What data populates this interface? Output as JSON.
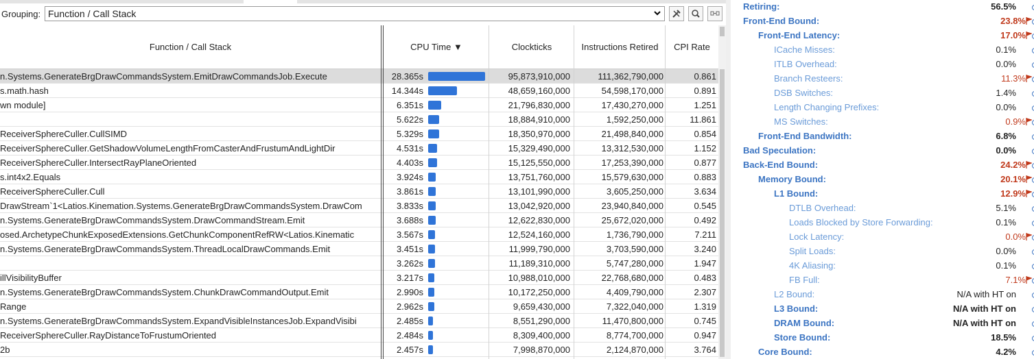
{
  "grouping": {
    "label": "Grouping:",
    "value": "Function / Call Stack"
  },
  "toolbar": {
    "settings_icon": "tools-icon",
    "search_icon": "search-icon",
    "expand_icon": "expand-icon"
  },
  "columns": {
    "function": "Function / Call Stack",
    "cpu_time": "CPU Time ▼",
    "clockticks": "Clockticks",
    "instructions": "Instructions Retired",
    "cpi": "CPI Rate"
  },
  "rows": [
    {
      "func": "n.Systems.GenerateBrgDrawCommandsSystem.EmitDrawCommandsJob.Execute",
      "time": "28.365s",
      "bar": 1.0,
      "clk": "95,873,910,000",
      "ins": "111,362,790,000",
      "cpi": "0.861"
    },
    {
      "func": "s.math.hash",
      "time": "14.344s",
      "bar": 0.506,
      "clk": "48,659,160,000",
      "ins": "54,598,170,000",
      "cpi": "0.891"
    },
    {
      "func": "wn module]",
      "time": "6.351s",
      "bar": 0.224,
      "clk": "21,796,830,000",
      "ins": "17,430,270,000",
      "cpi": "1.251"
    },
    {
      "func": "",
      "time": "5.622s",
      "bar": 0.198,
      "clk": "18,884,910,000",
      "ins": "1,592,250,000",
      "cpi": "11.861"
    },
    {
      "func": "ReceiverSphereCuller.CullSIMD",
      "time": "5.329s",
      "bar": 0.188,
      "clk": "18,350,970,000",
      "ins": "21,498,840,000",
      "cpi": "0.854"
    },
    {
      "func": "ReceiverSphereCuller.GetShadowVolumeLengthFromCasterAndFrustumAndLightDir",
      "time": "4.531s",
      "bar": 0.16,
      "clk": "15,329,490,000",
      "ins": "13,312,530,000",
      "cpi": "1.152"
    },
    {
      "func": "ReceiverSphereCuller.IntersectRayPlaneOriented",
      "time": "4.403s",
      "bar": 0.155,
      "clk": "15,125,550,000",
      "ins": "17,253,390,000",
      "cpi": "0.877"
    },
    {
      "func": "s.int4x2.Equals",
      "time": "3.924s",
      "bar": 0.138,
      "clk": "13,751,760,000",
      "ins": "15,579,630,000",
      "cpi": "0.883"
    },
    {
      "func": "ReceiverSphereCuller.Cull",
      "time": "3.861s",
      "bar": 0.136,
      "clk": "13,101,990,000",
      "ins": "3,605,250,000",
      "cpi": "3.634"
    },
    {
      "func": "DrawStream`1<Latios.Kinemation.Systems.GenerateBrgDrawCommandsSystem.DrawCom",
      "time": "3.833s",
      "bar": 0.135,
      "clk": "13,042,920,000",
      "ins": "23,940,840,000",
      "cpi": "0.545"
    },
    {
      "func": "n.Systems.GenerateBrgDrawCommandsSystem.DrawCommandStream.Emit",
      "time": "3.688s",
      "bar": 0.13,
      "clk": "12,622,830,000",
      "ins": "25,672,020,000",
      "cpi": "0.492"
    },
    {
      "func": "osed.ArchetypeChunkExposedExtensions.GetChunkComponentRefRW<Latios.Kinematic",
      "time": "3.567s",
      "bar": 0.126,
      "clk": "12,524,160,000",
      "ins": "1,736,790,000",
      "cpi": "7.211"
    },
    {
      "func": "n.Systems.GenerateBrgDrawCommandsSystem.ThreadLocalDrawCommands.Emit",
      "time": "3.451s",
      "bar": 0.122,
      "clk": "11,999,790,000",
      "ins": "3,703,590,000",
      "cpi": "3.240"
    },
    {
      "func": "",
      "time": "3.262s",
      "bar": 0.115,
      "clk": "11,189,310,000",
      "ins": "5,747,280,000",
      "cpi": "1.947"
    },
    {
      "func": "illVisibilityBuffer",
      "time": "3.217s",
      "bar": 0.113,
      "clk": "10,988,010,000",
      "ins": "22,768,680,000",
      "cpi": "0.483"
    },
    {
      "func": "n.Systems.GenerateBrgDrawCommandsSystem.ChunkDrawCommandOutput.Emit",
      "time": "2.990s",
      "bar": 0.105,
      "clk": "10,172,250,000",
      "ins": "4,409,790,000",
      "cpi": "2.307"
    },
    {
      "func": "Range",
      "time": "2.962s",
      "bar": 0.104,
      "clk": "9,659,430,000",
      "ins": "7,322,040,000",
      "cpi": "1.319"
    },
    {
      "func": "n.Systems.GenerateBrgDrawCommandsSystem.ExpandVisibleInstancesJob.ExpandVisibi",
      "time": "2.485s",
      "bar": 0.088,
      "clk": "8,551,290,000",
      "ins": "11,470,800,000",
      "cpi": "0.745"
    },
    {
      "func": "ReceiverSphereCuller.RayDistanceToFrustumOriented",
      "time": "2.484s",
      "bar": 0.088,
      "clk": "8,309,400,000",
      "ins": "8,774,700,000",
      "cpi": "0.947"
    },
    {
      "func": "2b",
      "time": "2.457s",
      "bar": 0.087,
      "clk": "7,998,870,000",
      "ins": "2,124,870,000",
      "cpi": "3.764"
    }
  ],
  "metrics": [
    {
      "label": "Retiring:",
      "value": "56.5%",
      "level": 0,
      "bold": true,
      "red": false,
      "flag": false
    },
    {
      "label": "Front-End Bound:",
      "value": "23.8%",
      "level": 0,
      "bold": true,
      "red": true,
      "flag": true
    },
    {
      "label": "Front-End Latency:",
      "value": "17.0%",
      "level": 1,
      "bold": true,
      "red": true,
      "flag": true
    },
    {
      "label": "ICache Misses:",
      "value": "0.1%",
      "level": 2,
      "bold": false,
      "red": false,
      "flag": false
    },
    {
      "label": "ITLB Overhead:",
      "value": "0.0%",
      "level": 2,
      "bold": false,
      "red": false,
      "flag": false
    },
    {
      "label": "Branch Resteers:",
      "value": "11.3%",
      "level": 2,
      "bold": false,
      "red": true,
      "flag": true
    },
    {
      "label": "DSB Switches:",
      "value": "1.4%",
      "level": 2,
      "bold": false,
      "red": false,
      "flag": false
    },
    {
      "label": "Length Changing Prefixes:",
      "value": "0.0%",
      "level": 2,
      "bold": false,
      "red": false,
      "flag": false
    },
    {
      "label": "MS Switches:",
      "value": "0.9%",
      "level": 2,
      "bold": false,
      "red": true,
      "flag": true
    },
    {
      "label": "Front-End Bandwidth:",
      "value": "6.8%",
      "level": 1,
      "bold": true,
      "red": false,
      "flag": false
    },
    {
      "label": "Bad Speculation:",
      "value": "0.0%",
      "level": 0,
      "bold": true,
      "red": false,
      "flag": false
    },
    {
      "label": "Back-End Bound:",
      "value": "24.2%",
      "level": 0,
      "bold": true,
      "red": true,
      "flag": true
    },
    {
      "label": "Memory Bound:",
      "value": "20.1%",
      "level": 1,
      "bold": true,
      "red": true,
      "flag": true
    },
    {
      "label": "L1 Bound:",
      "value": "12.9%",
      "level": 2,
      "bold": true,
      "red": true,
      "flag": true
    },
    {
      "label": "DTLB Overhead:",
      "value": "5.1%",
      "level": 3,
      "bold": false,
      "red": false,
      "flag": false
    },
    {
      "label": "Loads Blocked by Store Forwarding:",
      "value": "0.1%",
      "level": 3,
      "bold": false,
      "red": false,
      "flag": false
    },
    {
      "label": "Lock Latency:",
      "value": "0.0%",
      "level": 3,
      "bold": false,
      "red": true,
      "flag": true
    },
    {
      "label": "Split Loads:",
      "value": "0.0%",
      "level": 3,
      "bold": false,
      "red": false,
      "flag": false
    },
    {
      "label": "4K Aliasing:",
      "value": "0.1%",
      "level": 3,
      "bold": false,
      "red": false,
      "flag": false
    },
    {
      "label": "FB Full:",
      "value": "7.1%",
      "level": 3,
      "bold": false,
      "red": true,
      "flag": true
    },
    {
      "label": "L2 Bound:",
      "value": "N/A with HT on",
      "level": 2,
      "bold": false,
      "red": false,
      "flag": false
    },
    {
      "label": "L3 Bound:",
      "value": "N/A with HT on",
      "level": 2,
      "bold": true,
      "red": false,
      "flag": false
    },
    {
      "label": "DRAM Bound:",
      "value": "N/A with HT on",
      "level": 2,
      "bold": true,
      "red": false,
      "flag": false
    },
    {
      "label": "Store Bound:",
      "value": "18.5%",
      "level": 2,
      "bold": true,
      "red": false,
      "flag": false
    },
    {
      "label": "Core Bound:",
      "value": "4.2%",
      "level": 1,
      "bold": true,
      "red": false,
      "flag": false
    }
  ],
  "colors": {
    "bar": "#2f74d8",
    "metric_link": "#3b74c2",
    "metric_alert": "#c0391b"
  }
}
